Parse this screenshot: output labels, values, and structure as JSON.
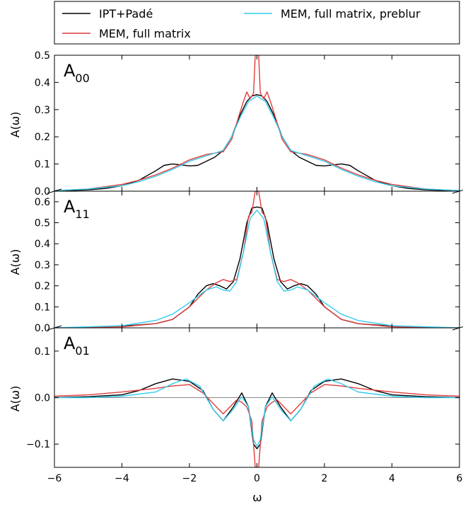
{
  "chart_data": {
    "type": "line",
    "xlabel": "ω",
    "xlim": [
      -6,
      6
    ],
    "xticks": [
      -6,
      -4,
      -2,
      0,
      2,
      4,
      6
    ],
    "xtick_labels": [
      "−6",
      "−4",
      "−2",
      "0",
      "2",
      "4",
      "6"
    ],
    "legend": {
      "placement": "top-left",
      "entries": [
        {
          "label": "IPT+Padé",
          "color": "#000000"
        },
        {
          "label": "MEM, full matrix",
          "color": "#e03c3c"
        },
        {
          "label": "MEM, full matrix, preblur",
          "color": "#33ccee"
        }
      ]
    },
    "panels": [
      {
        "id": "A00",
        "title_main": "A",
        "title_sub": "00",
        "ylabel": "A(ω)",
        "ylim": [
          0,
          0.5
        ],
        "yticks": [
          0.0,
          0.1,
          0.2,
          0.3,
          0.4,
          0.5
        ],
        "ytick_labels": [
          "0.0",
          "0.1",
          "0.2",
          "0.3",
          "0.4",
          "0.5"
        ],
        "zero_line": false,
        "series": [
          {
            "name": "IPT+Padé",
            "color": "#000000",
            "x": [
              -6,
              -5,
              -4.5,
              -4,
              -3.5,
              -3,
              -2.75,
              -2.5,
              -2.25,
              -2,
              -1.75,
              -1.5,
              -1.25,
              -1,
              -0.75,
              -0.5,
              -0.3,
              -0.15,
              0,
              0.15,
              0.3,
              0.5,
              0.75,
              1,
              1.25,
              1.5,
              1.75,
              2,
              2.25,
              2.5,
              2.75,
              3,
              3.5,
              4,
              4.5,
              5,
              6
            ],
            "y": [
              0.0,
              0.005,
              0.01,
              0.02,
              0.04,
              0.075,
              0.095,
              0.1,
              0.097,
              0.093,
              0.095,
              0.11,
              0.125,
              0.15,
              0.2,
              0.28,
              0.33,
              0.35,
              0.355,
              0.35,
              0.33,
              0.28,
              0.2,
              0.15,
              0.125,
              0.11,
              0.095,
              0.093,
              0.097,
              0.1,
              0.095,
              0.075,
              0.04,
              0.02,
              0.01,
              0.005,
              0.0
            ]
          },
          {
            "name": "MEM, full matrix",
            "color": "#e03c3c",
            "x": [
              -6,
              -5,
              -4,
              -3.5,
              -3,
              -2.5,
              -2,
              -1.5,
              -1,
              -0.75,
              -0.5,
              -0.4,
              -0.3,
              -0.2,
              -0.1,
              -0.05,
              0,
              0.05,
              0.1,
              0.2,
              0.3,
              0.4,
              0.5,
              0.75,
              1,
              1.5,
              2,
              2.5,
              3,
              3.5,
              4,
              5,
              6
            ],
            "y": [
              0.002,
              0.008,
              0.025,
              0.04,
              0.06,
              0.085,
              0.115,
              0.135,
              0.145,
              0.19,
              0.29,
              0.33,
              0.365,
              0.34,
              0.36,
              0.5,
              0.5,
              0.5,
              0.36,
              0.34,
              0.365,
              0.33,
              0.29,
              0.19,
              0.145,
              0.135,
              0.115,
              0.085,
              0.06,
              0.04,
              0.025,
              0.008,
              0.002
            ]
          },
          {
            "name": "MEM, full matrix, preblur",
            "color": "#33ccee",
            "x": [
              -6,
              -5,
              -4,
              -3.5,
              -3,
              -2.5,
              -2,
              -1.5,
              -1,
              -0.75,
              -0.5,
              -0.25,
              0,
              0.25,
              0.5,
              0.75,
              1,
              1.5,
              2,
              2.5,
              3,
              3.5,
              4,
              5,
              6
            ],
            "y": [
              0.002,
              0.008,
              0.02,
              0.035,
              0.055,
              0.08,
              0.11,
              0.13,
              0.15,
              0.2,
              0.27,
              0.33,
              0.35,
              0.33,
              0.27,
              0.2,
              0.15,
              0.13,
              0.11,
              0.08,
              0.055,
              0.035,
              0.02,
              0.008,
              0.002
            ]
          }
        ]
      },
      {
        "id": "A11",
        "title_main": "A",
        "title_sub": "11",
        "ylabel": "A(ω)",
        "ylim": [
          0,
          0.65
        ],
        "yticks": [
          0.0,
          0.1,
          0.2,
          0.3,
          0.4,
          0.5,
          0.6
        ],
        "ytick_labels": [
          "0.0",
          "0.1",
          "0.2",
          "0.3",
          "0.4",
          "0.5",
          "0.6"
        ],
        "zero_line": false,
        "series": [
          {
            "name": "IPT+Padé",
            "color": "#000000",
            "x": [
              -6,
              -5,
              -4,
              -3,
              -2.5,
              -2,
              -1.75,
              -1.5,
              -1.3,
              -1.1,
              -0.9,
              -0.7,
              -0.5,
              -0.3,
              -0.15,
              0,
              0.15,
              0.3,
              0.5,
              0.7,
              0.9,
              1.1,
              1.3,
              1.5,
              1.75,
              2,
              2.5,
              3,
              4,
              5,
              6
            ],
            "y": [
              0.0,
              0.002,
              0.008,
              0.02,
              0.04,
              0.1,
              0.16,
              0.2,
              0.21,
              0.2,
              0.185,
              0.22,
              0.33,
              0.5,
              0.57,
              0.575,
              0.57,
              0.5,
              0.33,
              0.22,
              0.185,
              0.2,
              0.21,
              0.2,
              0.16,
              0.1,
              0.04,
              0.02,
              0.008,
              0.002,
              0.0
            ]
          },
          {
            "name": "MEM, full matrix",
            "color": "#e03c3c",
            "x": [
              -6,
              -4,
              -3,
              -2.5,
              -2,
              -1.5,
              -1.2,
              -1,
              -0.8,
              -0.6,
              -0.4,
              -0.25,
              -0.15,
              -0.05,
              0,
              0.05,
              0.15,
              0.25,
              0.4,
              0.6,
              0.8,
              1,
              1.2,
              1.5,
              2,
              2.5,
              3,
              4,
              6
            ],
            "y": [
              0.0,
              0.005,
              0.02,
              0.04,
              0.1,
              0.18,
              0.215,
              0.23,
              0.22,
              0.23,
              0.36,
              0.53,
              0.55,
              0.65,
              0.65,
              0.65,
              0.55,
              0.53,
              0.36,
              0.23,
              0.22,
              0.23,
              0.215,
              0.18,
              0.1,
              0.04,
              0.02,
              0.005,
              0.0
            ]
          },
          {
            "name": "MEM, full matrix, preblur",
            "color": "#33ccee",
            "x": [
              -6,
              -4,
              -3,
              -2.5,
              -2,
              -1.5,
              -1.2,
              -1,
              -0.8,
              -0.6,
              -0.4,
              -0.2,
              0,
              0.2,
              0.4,
              0.6,
              0.8,
              1,
              1.2,
              1.5,
              2,
              2.5,
              3,
              4,
              6
            ],
            "y": [
              0.0,
              0.01,
              0.035,
              0.065,
              0.12,
              0.18,
              0.195,
              0.18,
              0.175,
              0.22,
              0.36,
              0.52,
              0.56,
              0.52,
              0.36,
              0.22,
              0.175,
              0.18,
              0.195,
              0.18,
              0.12,
              0.065,
              0.035,
              0.01,
              0.0
            ]
          }
        ]
      },
      {
        "id": "A01",
        "title_main": "A",
        "title_sub": "01",
        "ylabel": "A(ω)",
        "ylim": [
          -0.15,
          0.15
        ],
        "yticks": [
          -0.1,
          0.0,
          0.1
        ],
        "ytick_labels": [
          "−0.1",
          "0.0",
          "0.1"
        ],
        "zero_line": true,
        "series": [
          {
            "name": "IPT+Padé",
            "color": "#000000",
            "x": [
              -6,
              -5,
              -4,
              -3.5,
              -3,
              -2.5,
              -2,
              -1.6,
              -1.3,
              -1,
              -0.7,
              -0.45,
              -0.25,
              -0.1,
              0,
              0.1,
              0.25,
              0.45,
              0.7,
              1,
              1.3,
              1.6,
              2,
              2.5,
              3,
              3.5,
              4,
              5,
              6
            ],
            "y": [
              0.0,
              0.002,
              0.006,
              0.015,
              0.03,
              0.04,
              0.035,
              0.015,
              -0.025,
              -0.05,
              -0.02,
              0.01,
              -0.02,
              -0.1,
              -0.11,
              -0.1,
              -0.02,
              0.01,
              -0.02,
              -0.05,
              -0.025,
              0.015,
              0.035,
              0.04,
              0.03,
              0.015,
              0.006,
              0.002,
              0.0
            ]
          },
          {
            "name": "MEM, full matrix",
            "color": "#e03c3c",
            "x": [
              -6,
              -5,
              -4,
              -3,
              -2.5,
              -2,
              -1.6,
              -1.2,
              -1,
              -0.8,
              -0.6,
              -0.45,
              -0.3,
              -0.15,
              -0.05,
              0,
              0.05,
              0.15,
              0.3,
              0.45,
              0.6,
              0.8,
              1,
              1.2,
              1.6,
              2,
              2.5,
              3,
              4,
              5,
              6
            ],
            "y": [
              0.003,
              0.006,
              0.012,
              0.02,
              0.025,
              0.028,
              0.01,
              -0.02,
              -0.035,
              -0.02,
              -0.005,
              -0.01,
              -0.02,
              -0.05,
              -0.15,
              -0.15,
              -0.15,
              -0.05,
              -0.02,
              -0.01,
              -0.005,
              -0.02,
              -0.035,
              -0.02,
              0.01,
              0.028,
              0.025,
              0.02,
              0.012,
              0.006,
              0.003
            ]
          },
          {
            "name": "MEM, full matrix, preblur",
            "color": "#33ccee",
            "x": [
              -6,
              -5,
              -4,
              -3,
              -2.5,
              -2.1,
              -1.7,
              -1.3,
              -1,
              -0.7,
              -0.45,
              -0.25,
              -0.1,
              0,
              0.1,
              0.25,
              0.45,
              0.7,
              1,
              1.3,
              1.7,
              2.1,
              2.5,
              3,
              4,
              5,
              6
            ],
            "y": [
              0.0,
              0.0,
              0.003,
              0.012,
              0.03,
              0.04,
              0.025,
              -0.025,
              -0.05,
              -0.025,
              0.002,
              -0.02,
              -0.09,
              -0.105,
              -0.09,
              -0.02,
              0.002,
              -0.025,
              -0.05,
              -0.025,
              0.025,
              0.04,
              0.03,
              0.012,
              0.003,
              0.0,
              0.0
            ]
          }
        ]
      }
    ]
  }
}
